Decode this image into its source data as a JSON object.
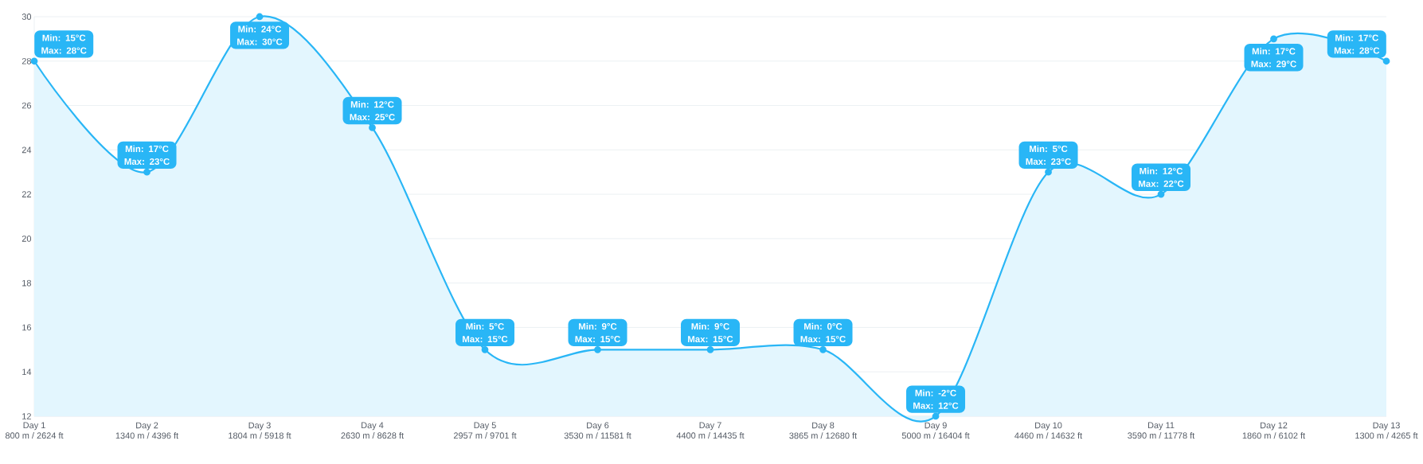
{
  "chart_data": {
    "type": "area",
    "categories": [
      "Day 1\n800 m / 2624 ft",
      "Day 2\n1340 m / 4396 ft",
      "Day 3\n1804 m / 5918 ft",
      "Day 4\n2630 m / 8628 ft",
      "Day 5\n2957 m / 9701 ft",
      "Day 6\n3530 m / 11581 ft",
      "Day 7\n4400 m / 14435 ft",
      "Day 8\n3865 m / 12680 ft",
      "Day 9\n5000 m / 16404 ft",
      "Day 10\n4460 m / 14632 ft",
      "Day 11\n3590 m / 11778 ft",
      "Day 12\n1860 m / 6102 ft",
      "Day 13\n1300 m / 4265 ft"
    ],
    "values": [
      28,
      23,
      30,
      25,
      15,
      15,
      15,
      15,
      12,
      23,
      22,
      29,
      28
    ],
    "color": "#29b6f6",
    "ylim": [
      12,
      30
    ],
    "yticks": [
      12,
      14,
      16,
      18,
      20,
      22,
      24,
      26,
      28,
      30
    ],
    "grid": "y",
    "marker": "circle",
    "annotations": [
      {
        "text": "Min: 15°C Max: 28°C",
        "x": "Day 1\n800 m / 2624 ft",
        "y": 28
      },
      {
        "text": "Min: 17°C Max: 23°C",
        "x": "Day 2\n1340 m / 4396 ft",
        "y": 23
      },
      {
        "text": "Min: 24°C Max: 30°C",
        "x": "Day 3\n1804 m / 5918 ft",
        "y": 30
      },
      {
        "text": "Min: 12°C Max: 25°C",
        "x": "Day 4\n2630 m / 8628 ft",
        "y": 25
      },
      {
        "text": "Min: 5°C Max: 15°C",
        "x": "Day 5\n2957 m / 9701 ft",
        "y": 15
      },
      {
        "text": "Min: 9°C Max: 15°C",
        "x": "Day 6\n3530 m / 11581 ft",
        "y": 15
      },
      {
        "text": "Min: 9°C Max: 15°C",
        "x": "Day 7\n4400 m / 14435 ft",
        "y": 15
      },
      {
        "text": "Min: 0°C Max: 15°C",
        "x": "Day 8\n3865 m / 12680 ft",
        "y": 15
      },
      {
        "text": "Min: -2°C Max: 12°C",
        "x": "Day 9\n5000 m / 16404 ft",
        "y": 12
      },
      {
        "text": "Min: 5°C Max: 23°C",
        "x": "Day 10\n4460 m / 14632 ft",
        "y": 23
      },
      {
        "text": "Min: 12°C Max: 22°C",
        "x": "Day 11\n3590 m / 11778 ft",
        "y": 22
      },
      {
        "text": "Min: 17°C Max: 29°C",
        "x": "Day 12\n1860 m / 6102 ft",
        "y": 29
      },
      {
        "text": "Min: 17°C Max: 28°C",
        "x": "Day 13\n1300 m / 4265 ft",
        "y": 28
      }
    ]
  }
}
